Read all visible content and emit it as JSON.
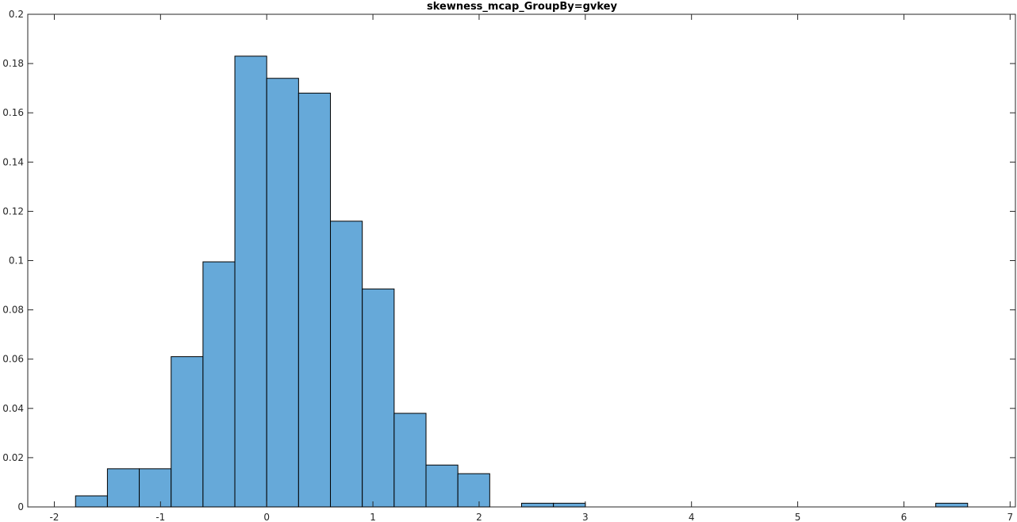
{
  "chart_data": {
    "type": "bar",
    "title": "skewness_mcap_GroupBy=gvkey",
    "xlabel": "",
    "ylabel": "",
    "xlim": [
      -2.25,
      7.05
    ],
    "ylim": [
      0,
      0.2
    ],
    "x_ticks": [
      -2,
      -1,
      0,
      1,
      2,
      3,
      4,
      5,
      6,
      7
    ],
    "y_ticks": [
      0,
      0.02,
      0.04,
      0.06,
      0.08,
      0.1,
      0.12,
      0.14,
      0.16,
      0.18,
      0.2
    ],
    "x_tick_labels": [
      "-2",
      "-1",
      "0",
      "1",
      "2",
      "3",
      "4",
      "5",
      "6",
      "7"
    ],
    "y_tick_labels": [
      "0",
      "0.02",
      "0.04",
      "0.06",
      "0.08",
      "0.1",
      "0.12",
      "0.14",
      "0.16",
      "0.18",
      "0.2"
    ],
    "bin_width": 0.3,
    "bins": [
      {
        "start": -1.8,
        "end": -1.5,
        "value": 0.0045
      },
      {
        "start": -1.5,
        "end": -1.2,
        "value": 0.0155
      },
      {
        "start": -1.2,
        "end": -0.9,
        "value": 0.0155
      },
      {
        "start": -0.9,
        "end": -0.6,
        "value": 0.061
      },
      {
        "start": -0.6,
        "end": -0.3,
        "value": 0.0995
      },
      {
        "start": -0.3,
        "end": 0.0,
        "value": 0.183
      },
      {
        "start": 0.0,
        "end": 0.3,
        "value": 0.174
      },
      {
        "start": 0.3,
        "end": 0.6,
        "value": 0.168
      },
      {
        "start": 0.6,
        "end": 0.9,
        "value": 0.116
      },
      {
        "start": 0.9,
        "end": 1.2,
        "value": 0.0885
      },
      {
        "start": 1.2,
        "end": 1.5,
        "value": 0.038
      },
      {
        "start": 1.5,
        "end": 1.8,
        "value": 0.017
      },
      {
        "start": 1.8,
        "end": 2.1,
        "value": 0.0135
      },
      {
        "start": 2.4,
        "end": 2.7,
        "value": 0.0015
      },
      {
        "start": 2.7,
        "end": 3.0,
        "value": 0.0015
      },
      {
        "start": 6.3,
        "end": 6.6,
        "value": 0.0015
      }
    ],
    "grid": false,
    "legend": "none",
    "colors": {
      "bar_fill": "#66a9d9",
      "bar_edge": "#000000",
      "axis": "#262626"
    }
  }
}
